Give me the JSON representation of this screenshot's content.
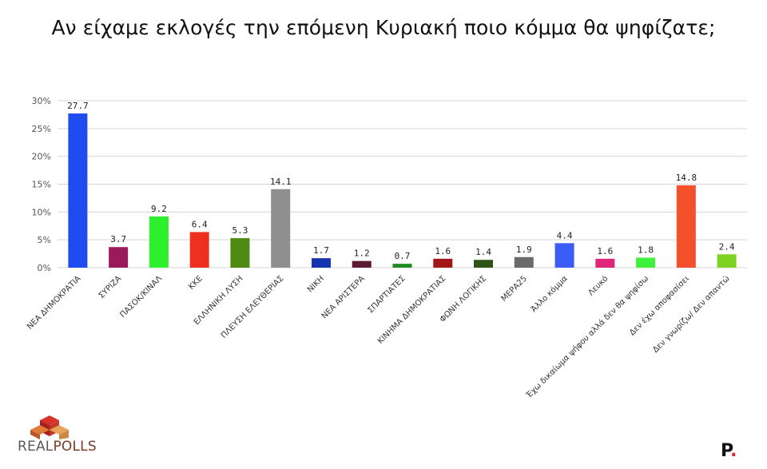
{
  "title": "Αν είχαμε εκλογές την επόμενη Κυριακή ποιο κόμμα θα ψηφίζατε;",
  "brand": {
    "name": "REALPOLLS",
    "name_part1": "REAL",
    "name_part2": "POLLS",
    "p_logo": "P",
    "p_logo_dot": "."
  },
  "chart_data": {
    "type": "bar",
    "ylim": [
      0,
      30
    ],
    "y_ticks": [
      "0%",
      "5%",
      "10%",
      "15%",
      "20%",
      "25%",
      "30%"
    ],
    "grid": true,
    "categories": [
      "ΝΕΑ ΔΗΜΟΚΡΑΤΙΑ",
      "ΣΥΡΙΖΑ",
      "ΠΑΣΟΚ/ΚΙΝΑΛ",
      "ΚΚΕ",
      "ΕΛΛΗΝΙΚΗ ΛΥΣΗ",
      "ΠΛΕΥΣΗ ΕΛΕΥΘΕΡΙΑΣ",
      "ΝΙΚΗ",
      "ΝΕΑ ΑΡΙΣΤΕΡΑ",
      "ΣΠΑΡΤΙΑΤΕΣ",
      "ΚΙΝΗΜΑ ΔΗΜΟΚΡΑΤΙΑΣ",
      "ΦΩΝΗ ΛΟΓΙΚΗΣ",
      "ΜΕΡΑ25",
      "Άλλο κόμμα",
      "Λευκό",
      "Έχω δικαίωμα ψήφου αλλά δεν θα ψηφίσω",
      "Δεν έχω αποφασίσει",
      "Δεν γνωρίζω/ Δεν απαντώ"
    ],
    "values": [
      27.7,
      3.7,
      9.2,
      6.4,
      5.3,
      14.1,
      1.7,
      1.2,
      0.7,
      1.6,
      1.4,
      1.9,
      4.4,
      1.6,
      1.8,
      14.8,
      2.4
    ],
    "value_labels": [
      "27.7",
      "3.7",
      "9.2",
      "6.4",
      "5.3",
      "14.1",
      "1.7",
      "1.2",
      "0.7",
      "1.6",
      "1.4",
      "1.9",
      "4.4",
      "1.6",
      "1.8",
      "14.8",
      "2.4"
    ],
    "colors": [
      "#1f4cf0",
      "#9b1b5a",
      "#2bf02b",
      "#f0301f",
      "#4d8c12",
      "#8f8f8f",
      "#1434b0",
      "#5c1a34",
      "#1e8c1e",
      "#a31616",
      "#2e5316",
      "#6b6b6b",
      "#3b5cf5",
      "#e0267a",
      "#41f03d",
      "#f5502c",
      "#7ed321"
    ]
  }
}
